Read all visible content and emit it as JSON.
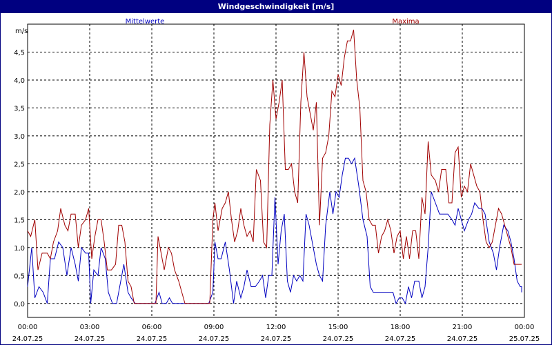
{
  "title": "Windgeschwindigkeit [m/s]",
  "colors": {
    "title_bg": "#000080",
    "mean": "#0000c0",
    "max": "#a00000",
    "grid": "#000000"
  },
  "chart_data": {
    "type": "line",
    "title": "Windgeschwindigkeit [m/s]",
    "ylabel": "m/s",
    "xlabel": "",
    "ylim": [
      -0.25,
      5.0
    ],
    "xlim_hours": [
      0,
      24
    ],
    "yticks": [
      {
        "v": 0.0,
        "label": "0,0"
      },
      {
        "v": 0.5,
        "label": "0,5"
      },
      {
        "v": 1.0,
        "label": "1,0"
      },
      {
        "v": 1.5,
        "label": "1,5"
      },
      {
        "v": 2.0,
        "label": "2,0"
      },
      {
        "v": 2.5,
        "label": "2,5"
      },
      {
        "v": 3.0,
        "label": "3,0"
      },
      {
        "v": 3.5,
        "label": "3,5"
      },
      {
        "v": 4.0,
        "label": "4,0"
      },
      {
        "v": 4.5,
        "label": "4,5"
      }
    ],
    "xticks": [
      {
        "h": 0,
        "time": "00:00",
        "date": "24.07.25"
      },
      {
        "h": 3,
        "time": "03:00",
        "date": "24.07.25"
      },
      {
        "h": 6,
        "time": "06:00",
        "date": "24.07.25"
      },
      {
        "h": 9,
        "time": "09:00",
        "date": "24.07.25"
      },
      {
        "h": 12,
        "time": "12:00",
        "date": "24.07.25"
      },
      {
        "h": 15,
        "time": "15:00",
        "date": "24.07.25"
      },
      {
        "h": 18,
        "time": "18:00",
        "date": "24.07.25"
      },
      {
        "h": 21,
        "time": "21:00",
        "date": "24.07.25"
      },
      {
        "h": 24,
        "time": "00:00",
        "date": "25.07.25"
      }
    ],
    "grid": true,
    "legend": "top",
    "series": [
      {
        "name": "Mittelwerte",
        "points": [
          [
            0.0,
            0.3
          ],
          [
            0.2,
            1.0
          ],
          [
            0.35,
            0.1
          ],
          [
            0.55,
            0.3
          ],
          [
            0.75,
            0.2
          ],
          [
            0.95,
            0.0
          ],
          [
            1.1,
            0.8
          ],
          [
            1.3,
            0.8
          ],
          [
            1.5,
            1.1
          ],
          [
            1.7,
            1.0
          ],
          [
            1.9,
            0.5
          ],
          [
            2.1,
            1.0
          ],
          [
            2.3,
            0.7
          ],
          [
            2.45,
            0.4
          ],
          [
            2.6,
            1.0
          ],
          [
            2.8,
            0.9
          ],
          [
            2.95,
            0.9
          ],
          [
            3.05,
            0.0
          ],
          [
            3.2,
            0.6
          ],
          [
            3.4,
            0.5
          ],
          [
            3.55,
            1.0
          ],
          [
            3.75,
            0.8
          ],
          [
            3.9,
            0.2
          ],
          [
            4.1,
            0.0
          ],
          [
            4.3,
            0.0
          ],
          [
            4.5,
            0.4
          ],
          [
            4.65,
            0.7
          ],
          [
            4.85,
            0.2
          ],
          [
            5.0,
            0.1
          ],
          [
            5.2,
            0.0
          ],
          [
            5.5,
            0.0
          ],
          [
            5.8,
            0.0
          ],
          [
            6.0,
            0.0
          ],
          [
            6.15,
            0.0
          ],
          [
            6.35,
            0.2
          ],
          [
            6.5,
            0.0
          ],
          [
            6.7,
            0.0
          ],
          [
            6.85,
            0.1
          ],
          [
            7.0,
            0.0
          ],
          [
            7.2,
            0.0
          ],
          [
            7.6,
            0.0
          ],
          [
            8.0,
            0.0
          ],
          [
            8.4,
            0.0
          ],
          [
            8.75,
            0.0
          ],
          [
            8.95,
            0.2
          ],
          [
            9.05,
            1.1
          ],
          [
            9.2,
            0.8
          ],
          [
            9.35,
            0.8
          ],
          [
            9.55,
            1.1
          ],
          [
            9.75,
            0.6
          ],
          [
            9.95,
            0.0
          ],
          [
            10.1,
            0.4
          ],
          [
            10.3,
            0.1
          ],
          [
            10.45,
            0.3
          ],
          [
            10.6,
            0.6
          ],
          [
            10.8,
            0.3
          ],
          [
            11.0,
            0.3
          ],
          [
            11.2,
            0.4
          ],
          [
            11.35,
            0.5
          ],
          [
            11.5,
            0.1
          ],
          [
            11.65,
            0.5
          ],
          [
            11.8,
            0.5
          ],
          [
            11.95,
            1.9
          ],
          [
            12.1,
            0.7
          ],
          [
            12.25,
            1.3
          ],
          [
            12.4,
            1.6
          ],
          [
            12.55,
            0.4
          ],
          [
            12.7,
            0.2
          ],
          [
            12.85,
            0.5
          ],
          [
            13.0,
            0.4
          ],
          [
            13.15,
            0.5
          ],
          [
            13.3,
            0.4
          ],
          [
            13.45,
            1.6
          ],
          [
            13.6,
            1.4
          ],
          [
            13.8,
            1.0
          ],
          [
            13.95,
            0.7
          ],
          [
            14.1,
            0.5
          ],
          [
            14.25,
            0.4
          ],
          [
            14.4,
            1.4
          ],
          [
            14.6,
            2.0
          ],
          [
            14.75,
            1.6
          ],
          [
            14.9,
            2.0
          ],
          [
            15.05,
            1.9
          ],
          [
            15.2,
            2.3
          ],
          [
            15.35,
            2.6
          ],
          [
            15.5,
            2.6
          ],
          [
            15.65,
            2.5
          ],
          [
            15.8,
            2.6
          ],
          [
            16.0,
            2.1
          ],
          [
            16.2,
            1.5
          ],
          [
            16.4,
            1.2
          ],
          [
            16.55,
            0.3
          ],
          [
            16.7,
            0.2
          ],
          [
            16.9,
            0.2
          ],
          [
            17.1,
            0.2
          ],
          [
            17.3,
            0.2
          ],
          [
            17.5,
            0.2
          ],
          [
            17.65,
            0.2
          ],
          [
            17.8,
            0.0
          ],
          [
            17.95,
            0.1
          ],
          [
            18.1,
            0.1
          ],
          [
            18.25,
            0.0
          ],
          [
            18.4,
            0.3
          ],
          [
            18.55,
            0.1
          ],
          [
            18.7,
            0.4
          ],
          [
            18.9,
            0.4
          ],
          [
            19.05,
            0.1
          ],
          [
            19.2,
            0.3
          ],
          [
            19.35,
            1.0
          ],
          [
            19.5,
            2.0
          ],
          [
            19.7,
            1.8
          ],
          [
            19.9,
            1.6
          ],
          [
            20.1,
            1.6
          ],
          [
            20.3,
            1.6
          ],
          [
            20.5,
            1.5
          ],
          [
            20.65,
            1.4
          ],
          [
            20.8,
            1.7
          ],
          [
            20.95,
            1.5
          ],
          [
            21.1,
            1.3
          ],
          [
            21.3,
            1.5
          ],
          [
            21.45,
            1.6
          ],
          [
            21.6,
            1.8
          ],
          [
            21.8,
            1.7
          ],
          [
            21.95,
            1.7
          ],
          [
            22.1,
            1.6
          ],
          [
            22.3,
            1.1
          ],
          [
            22.5,
            0.9
          ],
          [
            22.65,
            0.6
          ],
          [
            22.8,
            1.0
          ],
          [
            23.0,
            1.4
          ],
          [
            23.2,
            1.3
          ],
          [
            23.35,
            1.1
          ],
          [
            23.5,
            0.8
          ],
          [
            23.65,
            0.4
          ],
          [
            23.8,
            0.3
          ],
          [
            24.0,
            0.3
          ],
          [
            24.1,
            0.2
          ]
        ]
      },
      {
        "name": "Maxima",
        "points": [
          [
            0.0,
            1.3
          ],
          [
            0.15,
            1.2
          ],
          [
            0.35,
            1.5
          ],
          [
            0.5,
            0.6
          ],
          [
            0.7,
            0.9
          ],
          [
            0.95,
            0.9
          ],
          [
            1.1,
            0.8
          ],
          [
            1.25,
            1.1
          ],
          [
            1.45,
            1.3
          ],
          [
            1.6,
            1.7
          ],
          [
            1.8,
            1.4
          ],
          [
            1.95,
            1.3
          ],
          [
            2.1,
            1.6
          ],
          [
            2.3,
            1.6
          ],
          [
            2.45,
            1.0
          ],
          [
            2.6,
            1.4
          ],
          [
            2.8,
            1.5
          ],
          [
            2.95,
            1.7
          ],
          [
            3.1,
            0.8
          ],
          [
            3.25,
            1.2
          ],
          [
            3.4,
            1.5
          ],
          [
            3.55,
            1.5
          ],
          [
            3.7,
            1.1
          ],
          [
            3.85,
            0.6
          ],
          [
            4.05,
            0.6
          ],
          [
            4.25,
            0.7
          ],
          [
            4.4,
            1.4
          ],
          [
            4.55,
            1.4
          ],
          [
            4.7,
            1.1
          ],
          [
            4.85,
            0.4
          ],
          [
            5.0,
            0.3
          ],
          [
            5.15,
            0.0
          ],
          [
            5.4,
            0.0
          ],
          [
            5.7,
            0.0
          ],
          [
            6.0,
            0.0
          ],
          [
            6.2,
            0.0
          ],
          [
            6.3,
            1.2
          ],
          [
            6.45,
            0.9
          ],
          [
            6.6,
            0.6
          ],
          [
            6.8,
            1.0
          ],
          [
            6.95,
            0.9
          ],
          [
            7.1,
            0.6
          ],
          [
            7.3,
            0.4
          ],
          [
            7.45,
            0.2
          ],
          [
            7.6,
            0.0
          ],
          [
            8.0,
            0.0
          ],
          [
            8.4,
            0.0
          ],
          [
            8.8,
            0.0
          ],
          [
            8.95,
            1.5
          ],
          [
            9.05,
            1.8
          ],
          [
            9.2,
            1.3
          ],
          [
            9.4,
            1.7
          ],
          [
            9.55,
            1.8
          ],
          [
            9.7,
            2.0
          ],
          [
            9.85,
            1.5
          ],
          [
            10.0,
            1.1
          ],
          [
            10.15,
            1.3
          ],
          [
            10.3,
            1.7
          ],
          [
            10.45,
            1.4
          ],
          [
            10.6,
            1.2
          ],
          [
            10.75,
            1.3
          ],
          [
            10.9,
            1.1
          ],
          [
            11.05,
            2.4
          ],
          [
            11.25,
            2.2
          ],
          [
            11.4,
            1.1
          ],
          [
            11.55,
            1.0
          ],
          [
            11.7,
            3.2
          ],
          [
            11.85,
            4.0
          ],
          [
            12.0,
            3.3
          ],
          [
            12.15,
            3.6
          ],
          [
            12.3,
            4.0
          ],
          [
            12.45,
            2.4
          ],
          [
            12.6,
            2.4
          ],
          [
            12.75,
            2.5
          ],
          [
            12.9,
            2.0
          ],
          [
            13.05,
            1.8
          ],
          [
            13.2,
            3.6
          ],
          [
            13.35,
            4.5
          ],
          [
            13.5,
            3.7
          ],
          [
            13.65,
            3.4
          ],
          [
            13.8,
            3.1
          ],
          [
            13.95,
            3.6
          ],
          [
            14.1,
            1.4
          ],
          [
            14.25,
            2.6
          ],
          [
            14.4,
            2.7
          ],
          [
            14.55,
            3.0
          ],
          [
            14.7,
            3.8
          ],
          [
            14.85,
            3.7
          ],
          [
            15.0,
            4.1
          ],
          [
            15.15,
            3.9
          ],
          [
            15.3,
            4.4
          ],
          [
            15.45,
            4.7
          ],
          [
            15.6,
            4.7
          ],
          [
            15.75,
            4.9
          ],
          [
            15.9,
            4.0
          ],
          [
            16.05,
            3.5
          ],
          [
            16.2,
            2.2
          ],
          [
            16.35,
            2.0
          ],
          [
            16.5,
            1.5
          ],
          [
            16.65,
            1.4
          ],
          [
            16.8,
            1.4
          ],
          [
            16.95,
            0.9
          ],
          [
            17.1,
            1.2
          ],
          [
            17.25,
            1.3
          ],
          [
            17.4,
            1.5
          ],
          [
            17.55,
            1.3
          ],
          [
            17.7,
            0.9
          ],
          [
            17.85,
            1.2
          ],
          [
            18.0,
            1.3
          ],
          [
            18.15,
            0.8
          ],
          [
            18.3,
            1.2
          ],
          [
            18.45,
            0.8
          ],
          [
            18.6,
            1.3
          ],
          [
            18.75,
            1.3
          ],
          [
            18.9,
            0.8
          ],
          [
            19.05,
            1.9
          ],
          [
            19.2,
            1.6
          ],
          [
            19.35,
            2.9
          ],
          [
            19.5,
            2.3
          ],
          [
            19.7,
            2.2
          ],
          [
            19.85,
            2.0
          ],
          [
            20.0,
            2.4
          ],
          [
            20.2,
            2.4
          ],
          [
            20.35,
            1.8
          ],
          [
            20.5,
            1.8
          ],
          [
            20.65,
            2.7
          ],
          [
            20.8,
            2.8
          ],
          [
            20.95,
            1.9
          ],
          [
            21.1,
            2.1
          ],
          [
            21.25,
            2.0
          ],
          [
            21.4,
            2.5
          ],
          [
            21.55,
            2.3
          ],
          [
            21.7,
            2.1
          ],
          [
            21.85,
            2.0
          ],
          [
            22.0,
            1.5
          ],
          [
            22.15,
            1.1
          ],
          [
            22.3,
            1.0
          ],
          [
            22.45,
            1.1
          ],
          [
            22.6,
            1.4
          ],
          [
            22.75,
            1.7
          ],
          [
            22.9,
            1.6
          ],
          [
            23.05,
            1.4
          ],
          [
            23.2,
            1.2
          ],
          [
            23.35,
            1.0
          ],
          [
            23.5,
            0.7
          ],
          [
            23.65,
            0.7
          ],
          [
            23.8,
            0.7
          ],
          [
            24.0,
            0.7
          ],
          [
            24.1,
            0.7
          ]
        ]
      }
    ]
  }
}
